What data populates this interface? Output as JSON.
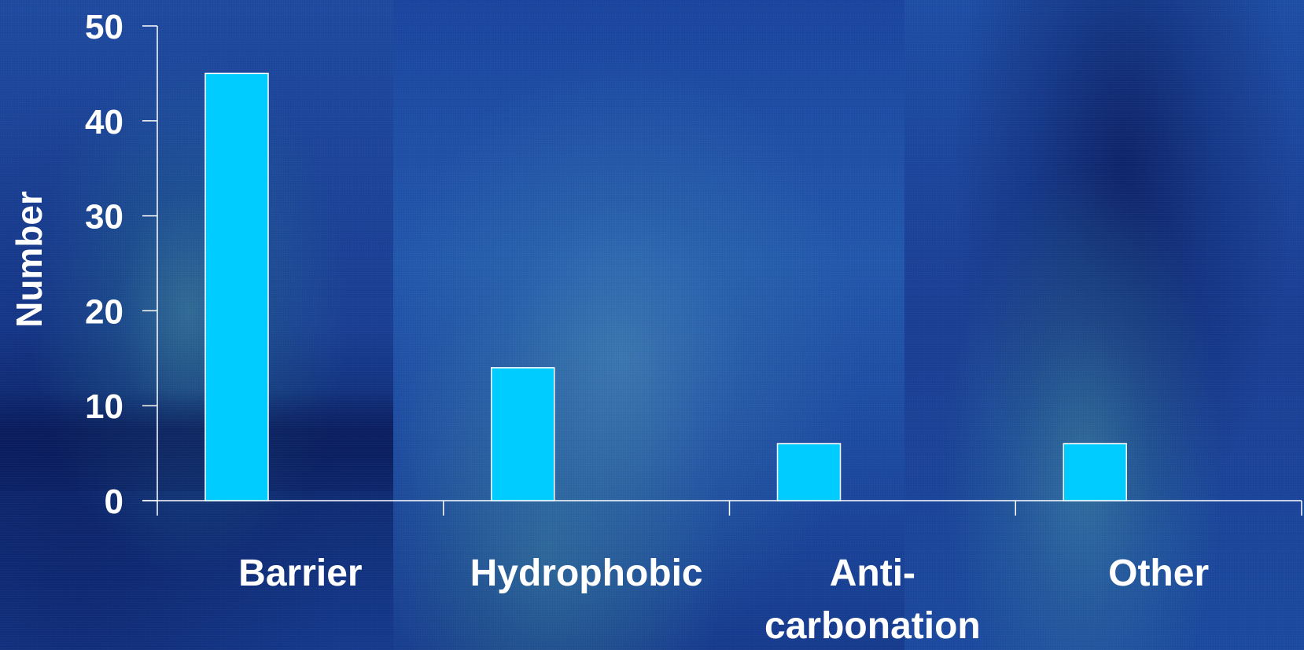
{
  "chart_data": {
    "type": "bar",
    "categories": [
      "Barrier",
      "Hydrophobic",
      "Anti-\ncarbonation",
      "Other"
    ],
    "values": [
      45,
      14,
      6,
      6
    ],
    "title": "",
    "xlabel": "",
    "ylabel": "Number",
    "ylim": [
      0,
      50
    ],
    "yticks": [
      0,
      10,
      20,
      30,
      40,
      50
    ],
    "grid": false,
    "legend": "none",
    "colors": {
      "bar_fill": "#00ccff",
      "bar_stroke": "#ffffff",
      "axis": "#ffffff",
      "text": "#ffffff",
      "background": "#1a3f95"
    }
  }
}
